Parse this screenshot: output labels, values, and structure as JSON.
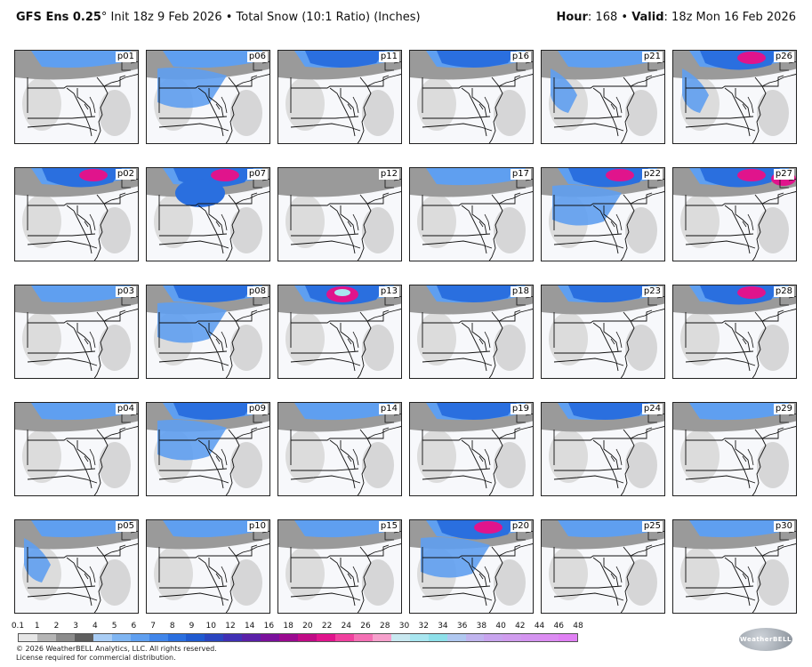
{
  "header": {
    "model_bold": "GFS Ens 0.25",
    "degree": "°",
    "init_text": " Init 18z 9 Feb 2026 • Total Snow (10:1 Ratio) (Inches)",
    "hour_label": "Hour",
    "hour_value": ": 168 • ",
    "valid_label": "Valid",
    "valid_value": ": 18z Mon 16 Feb 2026"
  },
  "panels": [
    {
      "label": "p01",
      "snow": "light-north"
    },
    {
      "label": "p06",
      "snow": "light-broad"
    },
    {
      "label": "p11",
      "snow": "moderate-north"
    },
    {
      "label": "p16",
      "snow": "moderate-north"
    },
    {
      "label": "p21",
      "snow": "light-west"
    },
    {
      "label": "p26",
      "snow": "heavy-west"
    },
    {
      "label": "p02",
      "snow": "heavy-north"
    },
    {
      "label": "p07",
      "snow": "heavy-center"
    },
    {
      "label": "p12",
      "snow": "trace"
    },
    {
      "label": "p17",
      "snow": "light-north"
    },
    {
      "label": "p22",
      "snow": "heavy-broad"
    },
    {
      "label": "p27",
      "snow": "heavy-northeast"
    },
    {
      "label": "p03",
      "snow": "light-north"
    },
    {
      "label": "p08",
      "snow": "moderate-broad"
    },
    {
      "label": "p13",
      "snow": "extreme-north"
    },
    {
      "label": "p18",
      "snow": "moderate-north"
    },
    {
      "label": "p23",
      "snow": "moderate-north"
    },
    {
      "label": "p28",
      "snow": "heavy-north"
    },
    {
      "label": "p04",
      "snow": "light-north"
    },
    {
      "label": "p09",
      "snow": "moderate-broad"
    },
    {
      "label": "p14",
      "snow": "light-north"
    },
    {
      "label": "p19",
      "snow": "moderate-north"
    },
    {
      "label": "p24",
      "snow": "moderate-north"
    },
    {
      "label": "p29",
      "snow": "light-north"
    },
    {
      "label": "p05",
      "snow": "light-west"
    },
    {
      "label": "p10",
      "snow": "light-north"
    },
    {
      "label": "p15",
      "snow": "light-north"
    },
    {
      "label": "p20",
      "snow": "heavy-broad"
    },
    {
      "label": "p25",
      "snow": "light-north"
    },
    {
      "label": "p30",
      "snow": "light-north"
    }
  ],
  "colorbar": {
    "labels": [
      "0.1",
      "1",
      "2",
      "3",
      "4",
      "5",
      "6",
      "7",
      "8",
      "9",
      "10",
      "12",
      "14",
      "16",
      "18",
      "20",
      "22",
      "24",
      "26",
      "28",
      "30",
      "32",
      "34",
      "36",
      "38",
      "40",
      "42",
      "44",
      "46",
      "48"
    ],
    "colors": [
      "#e6e6e6",
      "#b5b5b5",
      "#8c8c8c",
      "#5f5f5f",
      "#a9cdf5",
      "#7fb5f2",
      "#5f9ff0",
      "#4186ea",
      "#2a6fdf",
      "#1f5ad0",
      "#2a45c0",
      "#4030b5",
      "#5a20a8",
      "#7a109c",
      "#9a0a90",
      "#c00b86",
      "#e0148c",
      "#f0409e",
      "#f470b4",
      "#f6a0cc",
      "#c8e8f0",
      "#a8e6f0",
      "#8ee0ea",
      "#b0c8f0",
      "#c0b4ee",
      "#c8a4ee",
      "#d09cee",
      "#d494f0",
      "#dc8cf2",
      "#e080f4"
    ]
  },
  "footer": {
    "line1": "© 2026 WeatherBELL Analytics, LLC. All rights reserved.",
    "line2": "License required for commercial distribution."
  },
  "logo": {
    "text": "WeatherBELL"
  }
}
